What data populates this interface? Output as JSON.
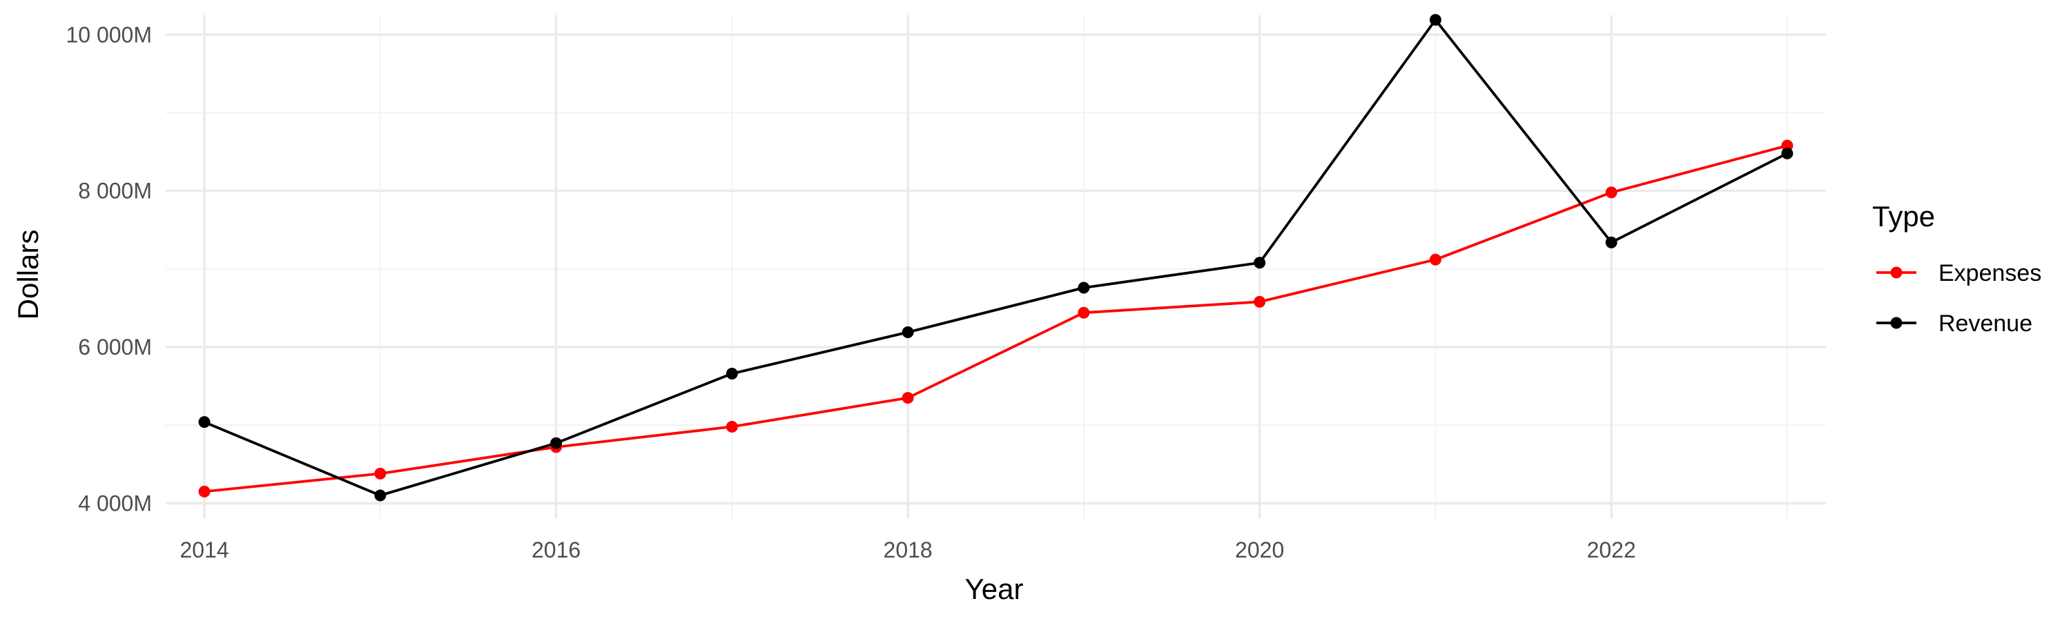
{
  "chart_data": {
    "type": "line",
    "title": "",
    "xlabel": "Year",
    "ylabel": "Dollars",
    "x": [
      2014,
      2015,
      2016,
      2017,
      2018,
      2019,
      2020,
      2021,
      2022,
      2023
    ],
    "xlim": [
      2013.78,
      2023.22
    ],
    "ylim": [
      3800,
      10250
    ],
    "x_ticks": [
      2014,
      2016,
      2018,
      2020,
      2022
    ],
    "x_tick_labels": [
      "2014",
      "2016",
      "2018",
      "2020",
      "2022"
    ],
    "y_ticks": [
      4000,
      6000,
      8000,
      10000
    ],
    "y_tick_labels": [
      "4 000M",
      "6 000M",
      "8 000M",
      "10 000M"
    ],
    "grid": true,
    "legend": {
      "title": "Type",
      "position": "right"
    },
    "series": [
      {
        "name": "Expenses",
        "color": "#ff0000",
        "values": [
          4150,
          4380,
          4720,
          4980,
          5350,
          6440,
          6580,
          7120,
          7980,
          8580
        ]
      },
      {
        "name": "Revenue",
        "color": "#000000",
        "values": [
          5040,
          4100,
          4770,
          5660,
          6190,
          6760,
          7080,
          10190,
          7340,
          8480
        ]
      }
    ]
  }
}
